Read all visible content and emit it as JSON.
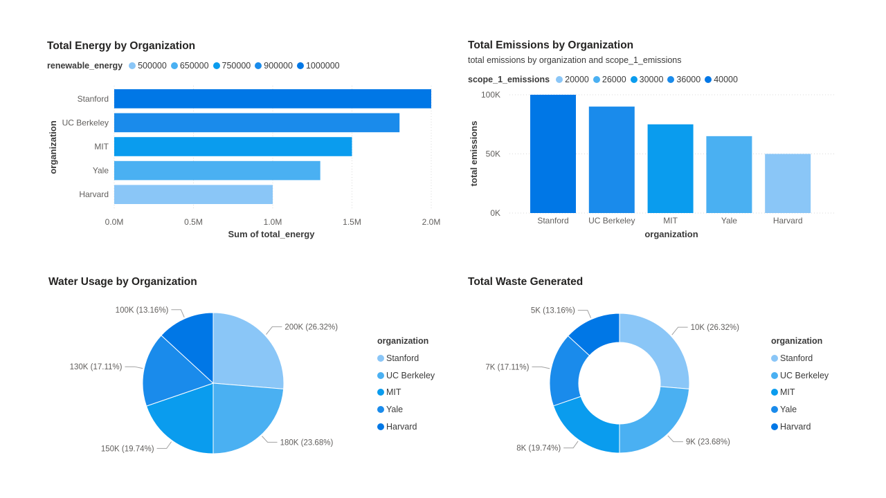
{
  "colors": {
    "stanford": "#0077E6",
    "berkeley": "#1A8BEB",
    "mit": "#0A9CEE",
    "yale": "#4AB0F2",
    "harvard": "#8AC6F7",
    "grid": "#d9d9d9",
    "text": "#605e5c"
  },
  "energy": {
    "title": "Total Energy by Organization",
    "legend_title": "renewable_energy",
    "legend_items": [
      {
        "label": "500000",
        "color": "#8AC6F7"
      },
      {
        "label": "650000",
        "color": "#4AB0F2"
      },
      {
        "label": "750000",
        "color": "#0A9CEE"
      },
      {
        "label": "900000",
        "color": "#1A8BEB"
      },
      {
        "label": "1000000",
        "color": "#0077E6"
      }
    ]
  },
  "emissions": {
    "title": "Total Emissions by Organization",
    "subtitle": "total emissions by organization and scope_1_emissions",
    "legend_title": "scope_1_emissions",
    "legend_items": [
      {
        "label": "20000",
        "color": "#8AC6F7"
      },
      {
        "label": "26000",
        "color": "#4AB0F2"
      },
      {
        "label": "30000",
        "color": "#0A9CEE"
      },
      {
        "label": "36000",
        "color": "#1A8BEB"
      },
      {
        "label": "40000",
        "color": "#0077E6"
      }
    ]
  },
  "water": {
    "title": "Water Usage by Organization",
    "legend_title": "organization",
    "legend_items": [
      {
        "label": "Stanford",
        "color": "#8AC6F7"
      },
      {
        "label": "UC Berkeley",
        "color": "#4AB0F2"
      },
      {
        "label": "MIT",
        "color": "#0A9CEE"
      },
      {
        "label": "Yale",
        "color": "#1A8BEB"
      },
      {
        "label": "Harvard",
        "color": "#0077E6"
      }
    ]
  },
  "waste": {
    "title": "Total Waste Generated",
    "legend_title": "organization",
    "legend_items": [
      {
        "label": "Stanford",
        "color": "#8AC6F7"
      },
      {
        "label": "UC Berkeley",
        "color": "#4AB0F2"
      },
      {
        "label": "MIT",
        "color": "#0A9CEE"
      },
      {
        "label": "Yale",
        "color": "#1A8BEB"
      },
      {
        "label": "Harvard",
        "color": "#0077E6"
      }
    ]
  },
  "chart_data": [
    {
      "type": "bar",
      "orientation": "horizontal",
      "title": "Total Energy by Organization",
      "categories": [
        "Stanford",
        "UC Berkeley",
        "MIT",
        "Yale",
        "Harvard"
      ],
      "values": [
        2000000,
        1800000,
        1500000,
        1300000,
        1000000
      ],
      "bar_colors": [
        "#0077E6",
        "#1A8BEB",
        "#0A9CEE",
        "#4AB0F2",
        "#8AC6F7"
      ],
      "xlabel": "Sum of total_energy",
      "ylabel": "organization",
      "xlim": [
        0,
        2000000
      ],
      "x_ticks": [
        0,
        500000,
        1000000,
        1500000,
        2000000
      ],
      "x_tick_labels": [
        "0.0M",
        "0.5M",
        "1.0M",
        "1.5M",
        "2.0M"
      ],
      "grid": true,
      "legend_position": "top-left"
    },
    {
      "type": "bar",
      "orientation": "vertical",
      "title": "Total Emissions by Organization",
      "subtitle": "total emissions by organization and scope_1_emissions",
      "categories": [
        "Stanford",
        "UC Berkeley",
        "MIT",
        "Yale",
        "Harvard"
      ],
      "values": [
        100000,
        90000,
        75000,
        65000,
        50000
      ],
      "bar_colors": [
        "#0077E6",
        "#1A8BEB",
        "#0A9CEE",
        "#4AB0F2",
        "#8AC6F7"
      ],
      "xlabel": "organization",
      "ylabel": "total emissions",
      "ylim": [
        0,
        100000
      ],
      "y_ticks": [
        0,
        50000,
        100000
      ],
      "y_tick_labels": [
        "0K",
        "50K",
        "100K"
      ],
      "grid": true,
      "legend_position": "top-left"
    },
    {
      "type": "pie",
      "title": "Water Usage by Organization",
      "categories": [
        "Stanford",
        "UC Berkeley",
        "MIT",
        "Yale",
        "Harvard"
      ],
      "values": [
        200000,
        180000,
        150000,
        130000,
        100000
      ],
      "data_labels": [
        "200K (26.32%)",
        "180K (23.68%)",
        "150K (19.74%)",
        "130K (17.11%)",
        "100K (13.16%)"
      ],
      "colors": [
        "#8AC6F7",
        "#4AB0F2",
        "#0A9CEE",
        "#1A8BEB",
        "#0077E6"
      ],
      "legend_position": "right"
    },
    {
      "type": "pie",
      "subtype": "donut",
      "title": "Total Waste Generated",
      "categories": [
        "Stanford",
        "UC Berkeley",
        "MIT",
        "Yale",
        "Harvard"
      ],
      "values": [
        10000,
        9000,
        7500,
        6500,
        5000
      ],
      "data_labels": [
        "10K (26.32%)",
        "9K (23.68%)",
        "8K (19.74%)",
        "7K (17.11%)",
        "5K (13.16%)"
      ],
      "colors": [
        "#8AC6F7",
        "#4AB0F2",
        "#0A9CEE",
        "#1A8BEB",
        "#0077E6"
      ],
      "legend_position": "right"
    }
  ]
}
